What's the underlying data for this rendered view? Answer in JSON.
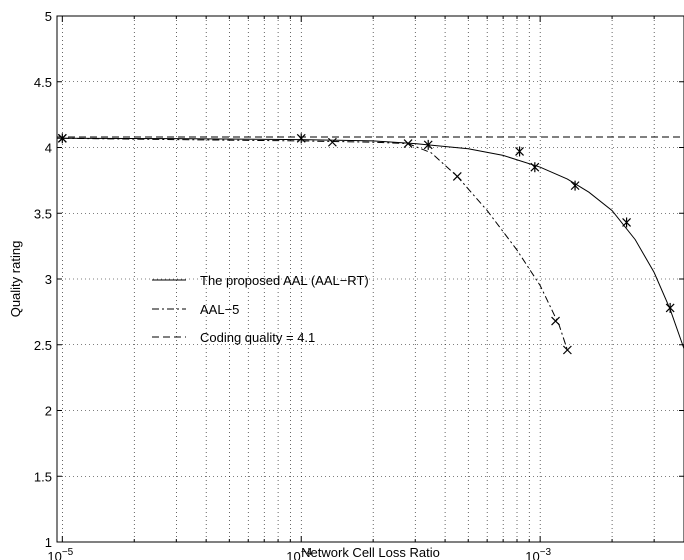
{
  "chart_data": {
    "type": "line",
    "title": "",
    "xlabel": "Network Cell Loss Ratio",
    "ylabel": "Quality rating",
    "xscale": "log",
    "xlim": [
      9.5e-06,
      0.004
    ],
    "ylim": [
      1,
      5
    ],
    "grid": true,
    "legend_position": "center-left",
    "x_ticks": [
      {
        "value": 1e-05,
        "base": "10",
        "exp": "−5"
      },
      {
        "value": 0.0001,
        "base": "10",
        "exp": "−4"
      },
      {
        "value": 0.001,
        "base": "10",
        "exp": "−3"
      }
    ],
    "y_ticks": [
      {
        "value": 1,
        "label": "1"
      },
      {
        "value": 1.5,
        "label": "1.5"
      },
      {
        "value": 2,
        "label": "2"
      },
      {
        "value": 2.5,
        "label": "2.5"
      },
      {
        "value": 3,
        "label": "3"
      },
      {
        "value": 3.5,
        "label": "3.5"
      },
      {
        "value": 4,
        "label": "4"
      },
      {
        "value": 4.5,
        "label": "4.5"
      },
      {
        "value": 5,
        "label": "5"
      }
    ],
    "series": [
      {
        "name": "The proposed AAL (AAL−RT)",
        "style": "solid",
        "color": "#000000",
        "line": {
          "x": [
            9.5e-06,
            1e-05,
            3e-05,
            0.0001,
            0.0002,
            0.0003,
            0.0005,
            0.0007,
            0.001,
            0.0013,
            0.0016,
            0.002,
            0.0025,
            0.003,
            0.0035,
            0.004
          ],
          "y": [
            4.07,
            4.07,
            4.068,
            4.06,
            4.05,
            4.03,
            3.99,
            3.94,
            3.85,
            3.76,
            3.66,
            3.52,
            3.3,
            3.05,
            2.77,
            2.47
          ]
        },
        "markers": {
          "symbol": "asterisk",
          "x": [
            1e-05,
            0.0001,
            0.00034,
            0.00082,
            0.00095,
            0.0014,
            0.0023,
            0.0035
          ],
          "y": [
            4.07,
            4.07,
            4.02,
            3.97,
            3.85,
            3.71,
            3.43,
            2.78
          ]
        }
      },
      {
        "name": "AAL−5",
        "style": "dashdot",
        "color": "#000000",
        "line": {
          "x": [
            1e-05,
            3e-05,
            0.0001,
            0.0002,
            0.00028,
            0.00035,
            0.00045,
            0.0006,
            0.0008,
            0.001,
            0.0012,
            0.0013
          ],
          "y": [
            4.07,
            4.06,
            4.05,
            4.04,
            4.03,
            3.96,
            3.78,
            3.52,
            3.22,
            2.95,
            2.65,
            2.46
          ]
        },
        "markers": {
          "symbol": "x",
          "x": [
            1e-05,
            0.000135,
            0.00028,
            0.00045,
            0.00116,
            0.0013
          ],
          "y": [
            4.07,
            4.04,
            4.03,
            3.78,
            2.68,
            2.46
          ]
        }
      },
      {
        "name": "Coding quality = 4.1",
        "style": "dashed",
        "color": "#000000",
        "line": {
          "x": [
            9.5e-06,
            0.004
          ],
          "y": [
            4.08,
            4.08
          ]
        }
      }
    ]
  }
}
